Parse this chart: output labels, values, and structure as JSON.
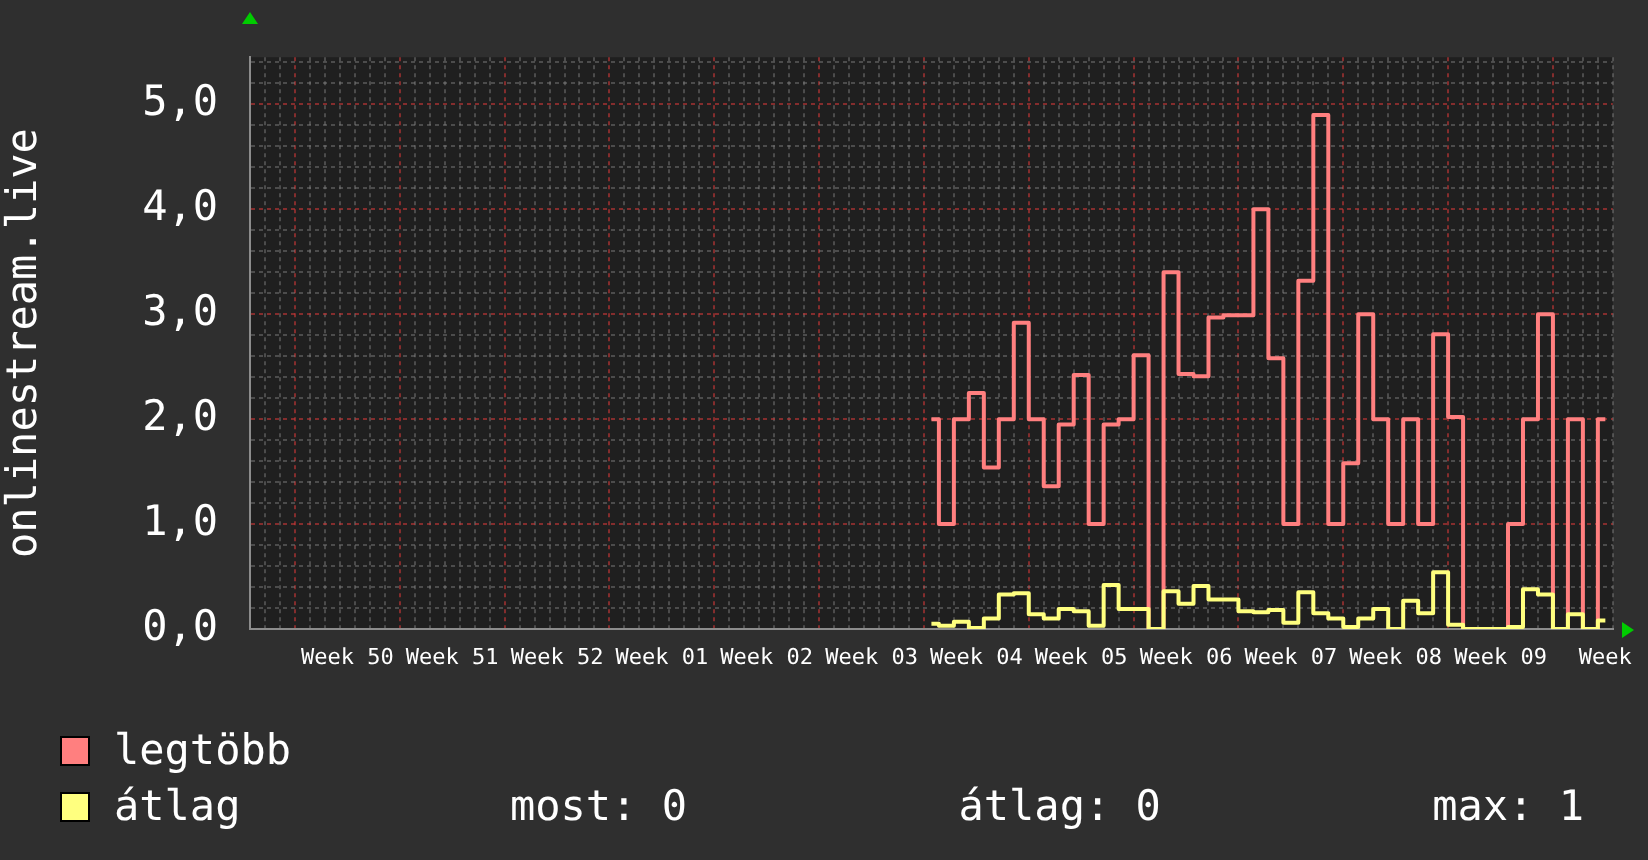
{
  "chart_data": {
    "type": "step",
    "ylabel": "onlinestream.live",
    "categories": [
      null,
      null,
      null,
      null,
      null,
      null,
      "Week 50",
      null,
      null,
      null,
      null,
      null,
      null,
      "Week 51",
      null,
      null,
      null,
      null,
      null,
      null,
      "Week 52",
      null,
      null,
      null,
      null,
      null,
      null,
      "Week 01",
      null,
      null,
      null,
      null,
      null,
      null,
      "Week 02",
      null,
      null,
      null,
      null,
      null,
      null,
      "Week 03",
      null,
      null,
      null,
      null,
      null,
      null,
      "Week 04",
      null,
      null,
      null,
      null,
      null,
      null,
      "Week 05",
      null,
      null,
      null,
      null,
      null,
      null,
      "Week 06",
      null,
      null,
      null,
      null,
      null,
      null,
      "Week 07",
      null,
      null,
      null,
      null,
      null,
      null,
      "Week 08",
      null,
      null,
      null,
      null,
      null,
      null,
      "Week 09",
      null,
      null,
      null,
      null,
      null,
      null,
      "Week"
    ],
    "series": [
      {
        "name": "legtöbb",
        "color": "#ff7f7f",
        "values": [
          null,
          null,
          null,
          null,
          null,
          null,
          null,
          null,
          null,
          null,
          null,
          null,
          null,
          null,
          null,
          null,
          null,
          null,
          null,
          null,
          null,
          null,
          null,
          null,
          null,
          null,
          null,
          null,
          null,
          null,
          null,
          null,
          null,
          null,
          null,
          null,
          null,
          null,
          null,
          null,
          null,
          null,
          null,
          null,
          null,
          2,
          1,
          2,
          2.25,
          1.54,
          2,
          2.92,
          2,
          1.36,
          1.95,
          2.42,
          1,
          1.95,
          2,
          2.61,
          0,
          3.4,
          2.43,
          2.41,
          2.97,
          2.99,
          2.99,
          4,
          2.58,
          1,
          3.32,
          4.9,
          1,
          1.58,
          3,
          2,
          1,
          2,
          1,
          2.81,
          2.02,
          0,
          0,
          0,
          1,
          2,
          3,
          0,
          2,
          0,
          2
        ]
      },
      {
        "name": "átlag",
        "color": "#ffff7f",
        "values": [
          null,
          null,
          null,
          null,
          null,
          null,
          null,
          null,
          null,
          null,
          null,
          null,
          null,
          null,
          null,
          null,
          null,
          null,
          null,
          null,
          null,
          null,
          null,
          null,
          null,
          null,
          null,
          null,
          null,
          null,
          null,
          null,
          null,
          null,
          null,
          null,
          null,
          null,
          null,
          null,
          null,
          null,
          null,
          null,
          null,
          0.05,
          0.03,
          0.07,
          0.01,
          0.1,
          0.33,
          0.34,
          0.14,
          0.1,
          0.19,
          0.17,
          0.03,
          0.42,
          0.19,
          0.19,
          0,
          0.36,
          0.24,
          0.41,
          0.28,
          0.28,
          0.17,
          0.16,
          0.18,
          0.06,
          0.35,
          0.15,
          0.1,
          0.02,
          0.1,
          0.19,
          0,
          0.27,
          0.15,
          0.54,
          0.04,
          0,
          0,
          0,
          0.02,
          0.38,
          0.33,
          0,
          0.14,
          0,
          0.08
        ]
      }
    ],
    "ylim": [
      0,
      5.45
    ],
    "yticks": [
      {
        "value": 0,
        "label": "0,0"
      },
      {
        "value": 0.2,
        "label": null
      },
      {
        "value": 0.4,
        "label": null
      },
      {
        "value": 0.6,
        "label": null
      },
      {
        "value": 0.8,
        "label": null
      },
      {
        "value": 1,
        "label": "1,0"
      },
      {
        "value": 1.2,
        "label": null
      },
      {
        "value": 1.4,
        "label": null
      },
      {
        "value": 1.6,
        "label": null
      },
      {
        "value": 1.8,
        "label": null
      },
      {
        "value": 2,
        "label": "2,0"
      },
      {
        "value": 2.2,
        "label": null
      },
      {
        "value": 2.4,
        "label": null
      },
      {
        "value": 2.6,
        "label": null
      },
      {
        "value": 2.8,
        "label": null
      },
      {
        "value": 3,
        "label": "3,0"
      },
      {
        "value": 3.2,
        "label": null
      },
      {
        "value": 3.4,
        "label": null
      },
      {
        "value": 3.6,
        "label": null
      },
      {
        "value": 3.8,
        "label": null
      },
      {
        "value": 4,
        "label": "4,0"
      },
      {
        "value": 4.2,
        "label": null
      },
      {
        "value": 4.4,
        "label": null
      },
      {
        "value": 4.6,
        "label": null
      },
      {
        "value": 4.8,
        "label": null
      },
      {
        "value": 5,
        "label": "5,0"
      },
      {
        "value": 5.2,
        "label": null
      },
      {
        "value": 5.4,
        "label": null
      }
    ],
    "grid": true,
    "legend": "bottom left",
    "annotations": [
      "most: 0",
      "átlag: 0",
      "max: 1"
    ]
  }
}
